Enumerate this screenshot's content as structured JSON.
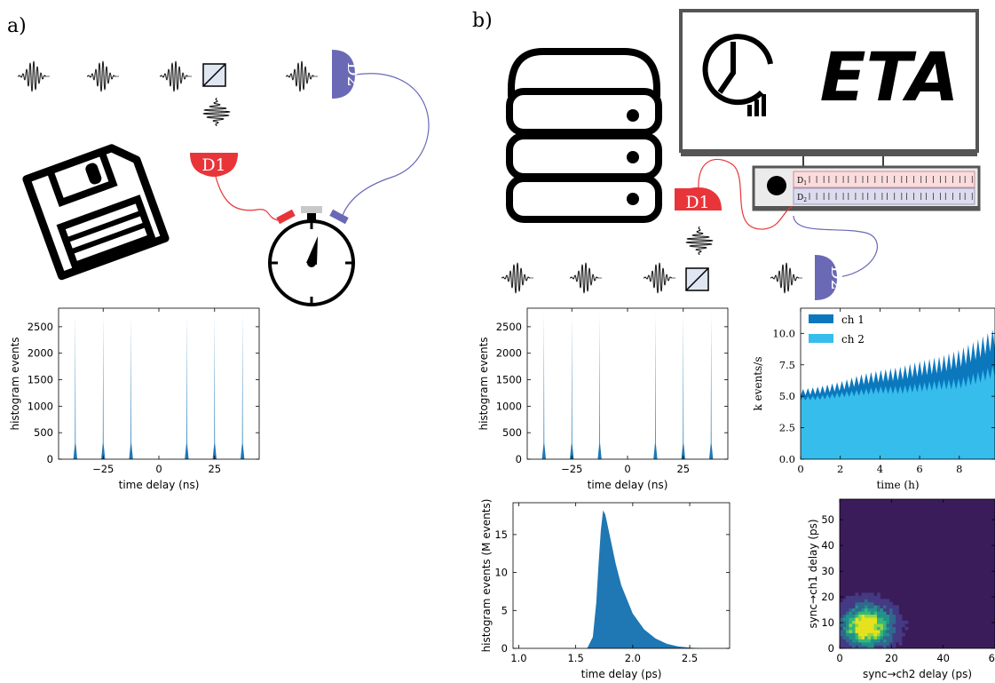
{
  "panel_labels": {
    "a": "a)",
    "b": "b)"
  },
  "detectors": {
    "d1": "D1",
    "d2": "D2"
  },
  "software": {
    "name": "ETA"
  },
  "timetagger_rows": {
    "r1": "D",
    "r1_sub": "1",
    "r2": "D",
    "r2_sub": "2"
  },
  "colors": {
    "d1": "#e8353a",
    "d2": "#6a69b5",
    "hist_blue": "#1f77b4",
    "ch1": "#0b78be",
    "ch2": "#36bdec",
    "heat_bg": "#3b1c5a"
  },
  "icons": [
    "floppy-disk-icon",
    "stopwatch-icon",
    "server-stack-icon",
    "clock-chart-icon",
    "beam-splitter-icon",
    "wave-packet-icon"
  ],
  "chart_data": [
    {
      "id": "hist_a",
      "type": "bar",
      "xlabel": "time delay (ns)",
      "ylabel": "histogram events",
      "xticks": [
        "−25",
        "0",
        "25"
      ],
      "xtick_values": [
        -25,
        0,
        25
      ],
      "yticks": [
        "0",
        "500",
        "1000",
        "1500",
        "2000",
        "2500"
      ],
      "ytick_values": [
        0,
        500,
        1000,
        1500,
        2000,
        2500
      ],
      "xlim": [
        -45,
        45
      ],
      "ylim": [
        0,
        2850
      ],
      "peaks_x": [
        -37.5,
        -25,
        -12.5,
        12.5,
        25,
        37.5
      ],
      "peaks_y": [
        2750,
        2750,
        2750,
        2750,
        2750,
        2750
      ]
    },
    {
      "id": "hist_b",
      "type": "bar",
      "xlabel": "time delay (ns)",
      "ylabel": "histogram events",
      "xticks": [
        "−25",
        "0",
        "25"
      ],
      "xtick_values": [
        -25,
        0,
        25
      ],
      "yticks": [
        "0",
        "500",
        "1000",
        "1500",
        "2000",
        "2500"
      ],
      "ytick_values": [
        0,
        500,
        1000,
        1500,
        2000,
        2500
      ],
      "xlim": [
        -45,
        45
      ],
      "ylim": [
        0,
        2850
      ],
      "peaks_x": [
        -37.5,
        -25,
        -12.5,
        12.5,
        25,
        37.5
      ],
      "peaks_y": [
        2750,
        2750,
        2750,
        2750,
        2750,
        2750
      ]
    },
    {
      "id": "rate",
      "type": "area",
      "xlabel": "time (h)",
      "ylabel": "k events/s",
      "xticks": [
        "0",
        "2",
        "4",
        "6",
        "8"
      ],
      "xtick_values": [
        0,
        2,
        4,
        6,
        8
      ],
      "yticks": [
        "0.0",
        "2.5",
        "5.0",
        "7.5",
        "10.0"
      ],
      "ytick_values": [
        0,
        2.5,
        5,
        7.5,
        10
      ],
      "xlim": [
        0,
        9.8
      ],
      "ylim": [
        0,
        12
      ],
      "series": [
        {
          "name": "ch 1",
          "x": [
            0,
            1,
            2,
            3,
            4,
            5,
            6,
            7,
            8,
            9,
            9.8
          ],
          "values": [
            5.3,
            5.5,
            5.8,
            6.3,
            6.6,
            6.8,
            7.2,
            7.5,
            8.0,
            8.8,
            9.6
          ]
        },
        {
          "name": "ch 2",
          "x": [
            0,
            1,
            2,
            3,
            4,
            5,
            6,
            7,
            8,
            9,
            9.8
          ],
          "values": [
            4.8,
            4.9,
            5.1,
            5.3,
            5.5,
            5.5,
            5.7,
            5.9,
            6.0,
            6.5,
            7.0
          ]
        }
      ],
      "legend": "top-left"
    },
    {
      "id": "hist_ps",
      "type": "area",
      "xlabel": "time delay (ps)",
      "ylabel": "histogram events (M events)",
      "xticks": [
        "1.0",
        "1.5",
        "2.0",
        "2.5"
      ],
      "xtick_values": [
        1.0,
        1.5,
        2.0,
        2.5
      ],
      "yticks": [
        "0",
        "5",
        "10",
        "15"
      ],
      "ytick_values": [
        0,
        5,
        10,
        15
      ],
      "xlim": [
        0.95,
        2.85
      ],
      "ylim": [
        0,
        19.2
      ],
      "x": [
        1.6,
        1.65,
        1.68,
        1.7,
        1.72,
        1.74,
        1.76,
        1.8,
        1.85,
        1.9,
        2.0,
        2.1,
        2.2,
        2.3,
        2.4,
        2.5,
        2.6
      ],
      "values": [
        0,
        1.5,
        6,
        11,
        15.5,
        18.2,
        17.6,
        14.8,
        11.2,
        8.3,
        4.6,
        2.5,
        1.3,
        0.6,
        0.25,
        0.1,
        0
      ]
    },
    {
      "id": "heatmap",
      "type": "heatmap",
      "xlabel": "sync→ch2 delay (ps)",
      "ylabel": "sync→ch1 delay (ps)",
      "xticks": [
        "0",
        "20",
        "40",
        "60"
      ],
      "xtick_values": [
        0,
        20,
        40,
        60
      ],
      "yticks": [
        "0",
        "10",
        "20",
        "30",
        "40",
        "50"
      ],
      "ytick_values": [
        0,
        10,
        20,
        30,
        40,
        50
      ],
      "xlim": [
        0,
        60
      ],
      "ylim": [
        0,
        58
      ],
      "peak": [
        10,
        8
      ]
    }
  ]
}
